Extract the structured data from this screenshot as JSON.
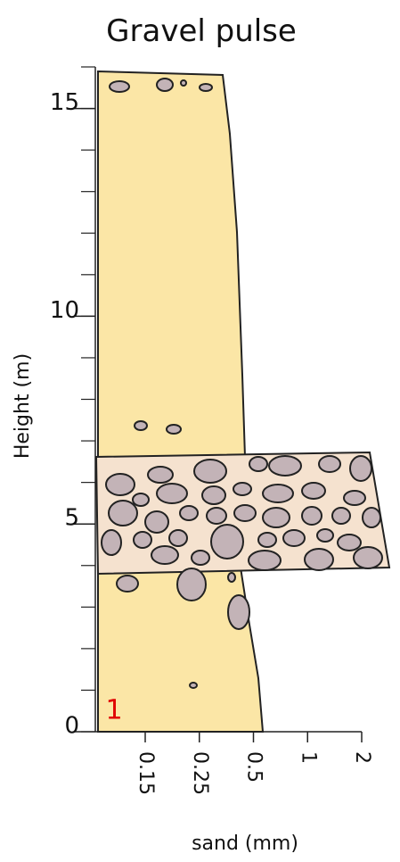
{
  "title": "Gravel pulse",
  "y_axis": {
    "label": "Height (m)",
    "ylim": [
      0,
      16
    ],
    "ticks": [
      0,
      5,
      10,
      15
    ]
  },
  "x_axis": {
    "label": "sand (mm)",
    "ticks": [
      0.15,
      0.25,
      0.5,
      1,
      2
    ]
  },
  "section_label": "1"
}
